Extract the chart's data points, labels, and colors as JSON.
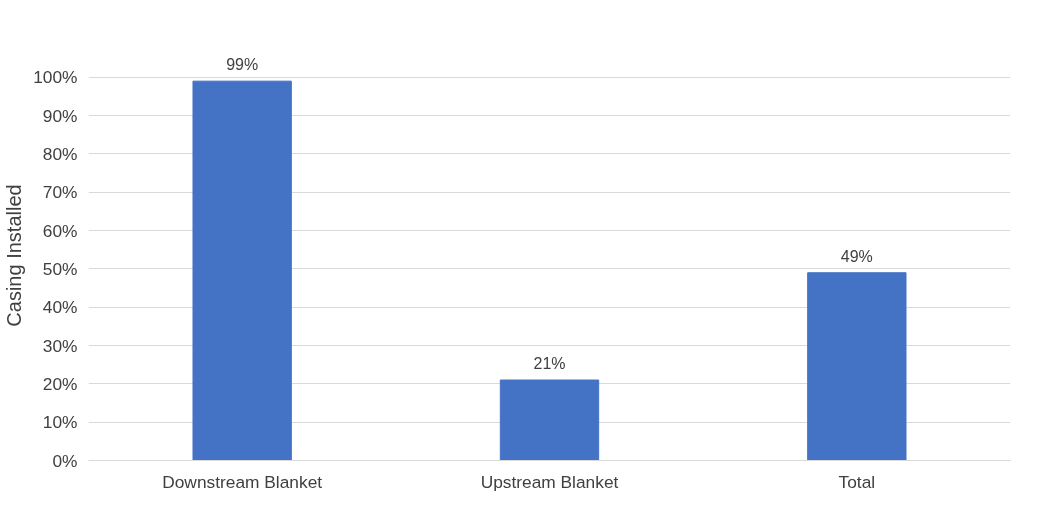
{
  "chart_data": {
    "type": "bar",
    "ylabel": "Casing Installed",
    "categories": [
      "Downstream Blanket",
      "Upstream Blanket",
      "Total"
    ],
    "values": [
      99,
      21,
      49
    ],
    "color": "#4472c4",
    "value_labels": [
      "99%",
      "21%",
      "49%"
    ],
    "ylim": [
      0,
      100
    ],
    "yticks": [
      {
        "value": 0,
        "label": "0%"
      },
      {
        "value": 10,
        "label": "10%"
      },
      {
        "value": 20,
        "label": "20%"
      },
      {
        "value": 30,
        "label": "30%"
      },
      {
        "value": 40,
        "label": "40%"
      },
      {
        "value": 50,
        "label": "50%"
      },
      {
        "value": 60,
        "label": "60%"
      },
      {
        "value": 70,
        "label": "70%"
      },
      {
        "value": 80,
        "label": "80%"
      },
      {
        "value": 90,
        "label": "90%"
      },
      {
        "value": 100,
        "label": "100%"
      }
    ],
    "grid": "y"
  }
}
